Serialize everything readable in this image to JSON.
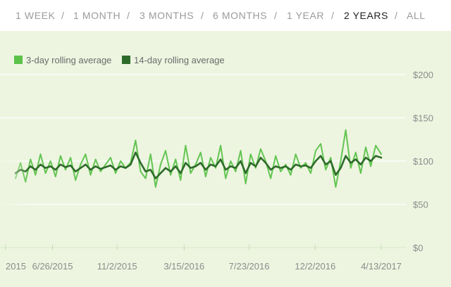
{
  "range_selector": {
    "items": [
      "1 WEEK",
      "1 MONTH",
      "3 MONTHS",
      "6 MONTHS",
      "1 YEAR",
      "2 YEARS",
      "ALL"
    ],
    "selected": "2 YEARS",
    "separator": "/"
  },
  "legend": {
    "series_3day": "3-day rolling average",
    "series_14day": "14-day rolling average"
  },
  "colors": {
    "series_3day": "#5cc24a",
    "series_14day": "#2e6b2b",
    "panel_bg": "#edf5e0",
    "grid": "#ffffff",
    "active_range": "#222222",
    "inactive_range": "#9b9b9b"
  },
  "chart_data": {
    "type": "line",
    "title": "",
    "xlabel": "",
    "ylabel": "",
    "ylim": [
      0,
      200
    ],
    "y_ticks": [
      "$200",
      "$150",
      "$100",
      "$50",
      "$0"
    ],
    "y_tick_values": [
      200,
      150,
      100,
      50,
      0
    ],
    "x_ticks": [
      "2015",
      "6/26/2015",
      "11/2/2015",
      "3/15/2016",
      "7/23/2016",
      "12/2/2016",
      "4/13/2017"
    ],
    "x_start": "2015-04-13",
    "x_end": "2017-04-13",
    "x_tick_dates": [
      "2015-02-14",
      "2015-06-26",
      "2015-11-02",
      "2016-03-15",
      "2016-07-23",
      "2016-12-02",
      "2017-04-13"
    ],
    "series": [
      {
        "name": "3-day rolling average",
        "dates": [
          "2015-04-13",
          "2015-04-23",
          "2015-05-03",
          "2015-05-13",
          "2015-05-23",
          "2015-06-02",
          "2015-06-12",
          "2015-06-22",
          "2015-07-02",
          "2015-07-12",
          "2015-07-22",
          "2015-08-01",
          "2015-08-11",
          "2015-08-21",
          "2015-08-31",
          "2015-09-10",
          "2015-09-20",
          "2015-09-30",
          "2015-10-10",
          "2015-10-20",
          "2015-10-30",
          "2015-11-09",
          "2015-11-19",
          "2015-11-29",
          "2015-12-09",
          "2015-12-19",
          "2015-12-29",
          "2016-01-08",
          "2016-01-18",
          "2016-01-28",
          "2016-02-07",
          "2016-02-17",
          "2016-02-27",
          "2016-03-08",
          "2016-03-18",
          "2016-03-28",
          "2016-04-07",
          "2016-04-17",
          "2016-04-27",
          "2016-05-07",
          "2016-05-17",
          "2016-05-27",
          "2016-06-06",
          "2016-06-16",
          "2016-06-26",
          "2016-07-06",
          "2016-07-16",
          "2016-07-26",
          "2016-08-05",
          "2016-08-15",
          "2016-08-25",
          "2016-09-04",
          "2016-09-14",
          "2016-09-24",
          "2016-10-04",
          "2016-10-14",
          "2016-10-24",
          "2016-11-03",
          "2016-11-13",
          "2016-11-23",
          "2016-12-03",
          "2016-12-13",
          "2016-12-23",
          "2017-01-02",
          "2017-01-12",
          "2017-01-22",
          "2017-02-01",
          "2017-02-11",
          "2017-02-21",
          "2017-03-03",
          "2017-03-13",
          "2017-03-23",
          "2017-04-02",
          "2017-04-13"
        ],
        "values": [
          80,
          98,
          76,
          102,
          84,
          108,
          86,
          100,
          82,
          106,
          90,
          104,
          78,
          96,
          108,
          84,
          102,
          88,
          96,
          104,
          86,
          100,
          92,
          98,
          124,
          88,
          80,
          108,
          70,
          96,
          112,
          84,
          102,
          78,
          118,
          86,
          96,
          110,
          82,
          104,
          92,
          118,
          80,
          100,
          88,
          112,
          74,
          108,
          92,
          114,
          100,
          80,
          106,
          88,
          96,
          84,
          108,
          92,
          98,
          86,
          112,
          120,
          90,
          104,
          70,
          100,
          136,
          92,
          110,
          86,
          116,
          94,
          118,
          108
        ],
        "color": "#5cc24a"
      },
      {
        "name": "14-day rolling average",
        "dates": [
          "2015-04-13",
          "2015-04-23",
          "2015-05-03",
          "2015-05-13",
          "2015-05-23",
          "2015-06-02",
          "2015-06-12",
          "2015-06-22",
          "2015-07-02",
          "2015-07-12",
          "2015-07-22",
          "2015-08-01",
          "2015-08-11",
          "2015-08-21",
          "2015-08-31",
          "2015-09-10",
          "2015-09-20",
          "2015-09-30",
          "2015-10-10",
          "2015-10-20",
          "2015-10-30",
          "2015-11-09",
          "2015-11-19",
          "2015-11-29",
          "2015-12-09",
          "2015-12-19",
          "2015-12-29",
          "2016-01-08",
          "2016-01-18",
          "2016-01-28",
          "2016-02-07",
          "2016-02-17",
          "2016-02-27",
          "2016-03-08",
          "2016-03-18",
          "2016-03-28",
          "2016-04-07",
          "2016-04-17",
          "2016-04-27",
          "2016-05-07",
          "2016-05-17",
          "2016-05-27",
          "2016-06-06",
          "2016-06-16",
          "2016-06-26",
          "2016-07-06",
          "2016-07-16",
          "2016-07-26",
          "2016-08-05",
          "2016-08-15",
          "2016-08-25",
          "2016-09-04",
          "2016-09-14",
          "2016-09-24",
          "2016-10-04",
          "2016-10-14",
          "2016-10-24",
          "2016-11-03",
          "2016-11-13",
          "2016-11-23",
          "2016-12-03",
          "2016-12-13",
          "2016-12-23",
          "2017-01-02",
          "2017-01-12",
          "2017-01-22",
          "2017-02-01",
          "2017-02-11",
          "2017-02-21",
          "2017-03-03",
          "2017-03-13",
          "2017-03-23",
          "2017-04-02",
          "2017-04-13"
        ],
        "values": [
          86,
          90,
          88,
          94,
          90,
          96,
          92,
          94,
          90,
          96,
          93,
          95,
          88,
          92,
          96,
          90,
          94,
          91,
          93,
          95,
          90,
          94,
          92,
          96,
          110,
          98,
          88,
          90,
          80,
          86,
          92,
          88,
          94,
          86,
          98,
          92,
          94,
          98,
          90,
          96,
          94,
          102,
          90,
          94,
          92,
          100,
          86,
          98,
          94,
          104,
          98,
          90,
          94,
          92,
          94,
          90,
          96,
          94,
          95,
          92,
          100,
          106,
          96,
          100,
          84,
          92,
          106,
          98,
          102,
          96,
          104,
          100,
          106,
          104
        ],
        "color": "#2e6b2b"
      }
    ]
  }
}
